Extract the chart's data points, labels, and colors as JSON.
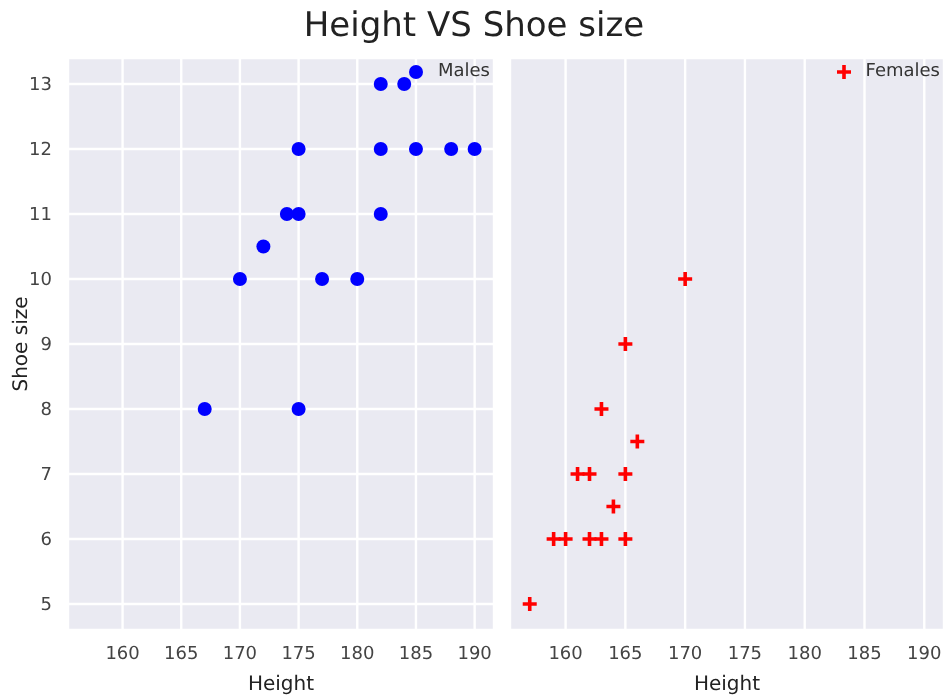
{
  "chart_data": [
    {
      "type": "scatter",
      "title": "Height VS Shoe size",
      "xlabel": "Height",
      "ylabel": "Shoe size",
      "xlim": [
        155.35,
        191.65
      ],
      "xticks": [
        160,
        165,
        170,
        175,
        180,
        185,
        190
      ],
      "ylim": [
        4.6,
        13.4
      ],
      "yticks": [
        5,
        6,
        7,
        8,
        9,
        10,
        11,
        12,
        13
      ],
      "grid": true,
      "legend": "top right",
      "marker": "circle",
      "series": [
        {
          "name": "Males",
          "color": "#0000ff",
          "x": [
            182,
            184,
            175,
            182,
            185,
            188,
            190,
            174,
            175,
            182,
            172,
            170,
            177,
            180,
            167,
            175
          ],
          "values": [
            13,
            13,
            12,
            12,
            12,
            12,
            12,
            11,
            11,
            11,
            10.5,
            10,
            10,
            10,
            8,
            8
          ]
        }
      ]
    },
    {
      "type": "scatter",
      "xlabel": "Height",
      "xlim": [
        155.35,
        191.65
      ],
      "xticks": [
        160,
        165,
        170,
        175,
        180,
        185,
        190
      ],
      "ylim": [
        4.6,
        13.4
      ],
      "yticks": [
        5,
        6,
        7,
        8,
        9,
        10,
        11,
        12,
        13
      ],
      "tick_labels": "x",
      "grid": true,
      "legend": "top right",
      "marker": "cross",
      "series": [
        {
          "name": "Females",
          "color": "#ff0000",
          "x": [
            157,
            159,
            160,
            162,
            163,
            165,
            164,
            161,
            162,
            165,
            166,
            163,
            165,
            170
          ],
          "values": [
            5,
            6,
            6,
            6,
            6,
            6,
            6.5,
            7,
            7,
            7,
            7.5,
            8,
            9,
            10
          ]
        }
      ]
    }
  ]
}
